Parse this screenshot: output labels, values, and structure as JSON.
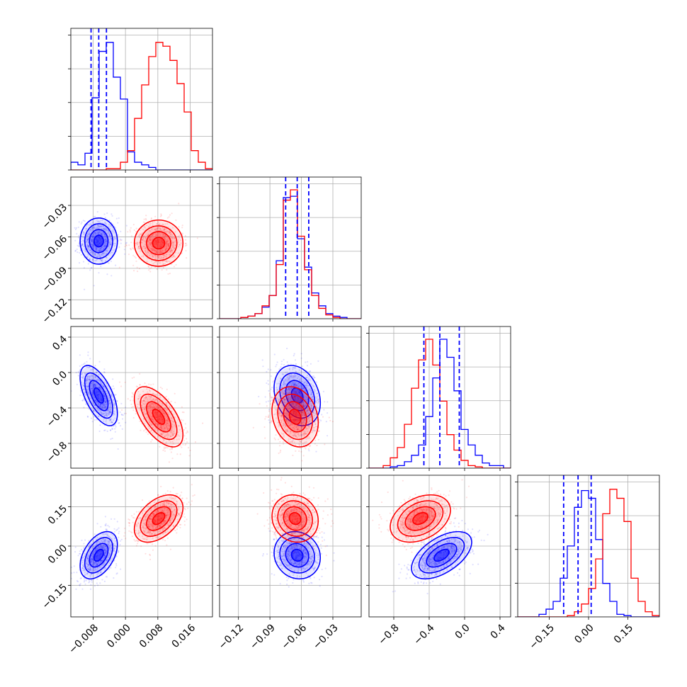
{
  "colors": {
    "blue": "#0000ff",
    "red": "#ff0000",
    "grid": "#b0b0b0",
    "axis": "#000000"
  },
  "chart_data": {
    "type": "corner",
    "grid": true,
    "parameters": [
      {
        "lim": [
          -0.0135,
          0.0215
        ],
        "ticks": [
          -0.008,
          0.0,
          0.008,
          0.016
        ],
        "tick_labels": [
          "−0.008",
          "0.000",
          "0.008",
          "0.016"
        ]
      },
      {
        "lim": [
          -0.138,
          -0.003
        ],
        "ticks": [
          -0.12,
          -0.09,
          -0.06,
          -0.03
        ],
        "tick_labels": [
          "−0.12",
          "−0.09",
          "−0.06",
          "−0.03"
        ]
      },
      {
        "lim": [
          -1.08,
          0.52
        ],
        "ticks": [
          -0.8,
          -0.4,
          0.0,
          0.4
        ],
        "tick_labels": [
          "−0.8",
          "−0.4",
          "0.0",
          "0.4"
        ]
      },
      {
        "lim": [
          -0.27,
          0.27
        ],
        "ticks": [
          -0.15,
          0.0,
          0.15
        ],
        "tick_labels": [
          "−0.15",
          "0.00",
          "0.15"
        ]
      }
    ],
    "quantiles_blue": [
      [
        -0.0085,
        -0.0066,
        -0.0047
      ],
      [
        -0.075,
        -0.064,
        -0.053
      ],
      [
        -0.46,
        -0.28,
        -0.06
      ],
      [
        -0.095,
        -0.04,
        0.01
      ]
    ],
    "series": [
      {
        "color": "blue",
        "mean": [
          -0.0066,
          -0.064,
          -0.26,
          -0.035
        ],
        "sd": [
          0.0023,
          0.011,
          0.17,
          0.045
        ]
      },
      {
        "color": "red",
        "mean": [
          0.0082,
          -0.066,
          -0.5,
          0.105
        ],
        "sd": [
          0.003,
          0.011,
          0.17,
          0.045
        ]
      }
    ],
    "histograms": {
      "blue": [
        [
          6,
          4,
          13,
          56,
          92,
          99,
          72,
          55,
          14,
          6,
          4,
          2,
          0,
          0,
          0,
          0,
          0,
          0,
          0,
          0
        ],
        [
          0,
          0,
          0,
          1,
          2,
          4,
          9,
          18,
          45,
          94,
          95,
          62,
          40,
          20,
          10,
          4,
          2,
          1,
          0,
          0
        ],
        [
          0,
          0,
          0,
          1,
          2,
          5,
          10,
          18,
          40,
          70,
          100,
          86,
          60,
          30,
          18,
          10,
          4,
          2,
          2,
          0
        ],
        [
          0,
          0,
          0,
          2,
          6,
          12,
          30,
          55,
          85,
          98,
          92,
          60,
          26,
          12,
          2,
          1,
          0,
          0,
          0,
          0
        ]
      ],
      "red": [
        [
          0,
          0,
          0,
          0,
          0,
          1,
          1,
          6,
          15,
          40,
          66,
          88,
          99,
          96,
          85,
          67,
          45,
          15,
          6,
          1
        ],
        [
          0,
          0,
          0,
          1,
          2,
          4,
          10,
          18,
          42,
          92,
          100,
          64,
          38,
          18,
          8,
          3,
          1,
          0,
          0,
          0
        ],
        [
          0,
          0,
          2,
          8,
          16,
          34,
          62,
          84,
          100,
          80,
          52,
          26,
          14,
          6,
          2,
          1,
          0,
          0,
          0,
          0
        ],
        [
          0,
          0,
          0,
          0,
          0,
          0,
          0,
          1,
          4,
          10,
          22,
          45,
          80,
          99,
          92,
          74,
          30,
          12,
          4,
          1
        ]
      ]
    }
  }
}
